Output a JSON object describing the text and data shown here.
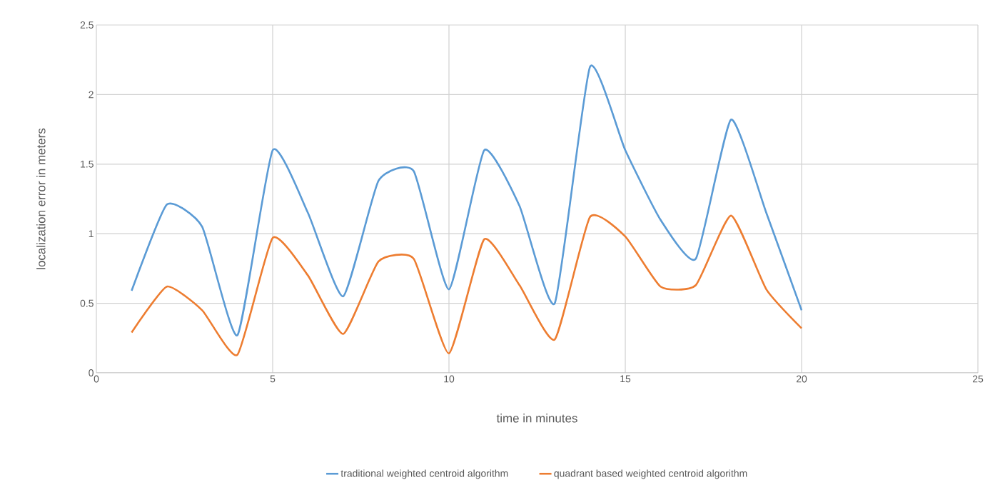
{
  "chart_data": {
    "type": "line",
    "xlabel": "time in minutes",
    "ylabel": "localization error in meters",
    "x": [
      1,
      2,
      3,
      4,
      5,
      6,
      7,
      8,
      9,
      10,
      11,
      12,
      13,
      14,
      15,
      16,
      17,
      18,
      19,
      20
    ],
    "series": [
      {
        "name": "traditional weighted centroid algorithm",
        "color": "#5b9bd5",
        "values": [
          0.59,
          1.21,
          1.05,
          0.27,
          1.6,
          1.15,
          0.55,
          1.38,
          1.45,
          0.6,
          1.6,
          1.2,
          0.5,
          2.2,
          1.6,
          1.1,
          0.82,
          1.82,
          1.15,
          0.45
        ]
      },
      {
        "name": "quadrant based weighted centroid algorithm",
        "color": "#ed7d31",
        "values": [
          0.29,
          0.62,
          0.45,
          0.13,
          0.97,
          0.7,
          0.28,
          0.8,
          0.82,
          0.14,
          0.96,
          0.63,
          0.24,
          1.12,
          0.98,
          0.62,
          0.63,
          1.13,
          0.6,
          0.32
        ]
      }
    ],
    "xlim": [
      0,
      25
    ],
    "xticks": [
      0,
      5,
      10,
      15,
      20,
      25
    ],
    "ylim": [
      0,
      2.5
    ],
    "yticks": [
      0,
      0.5,
      1,
      1.5,
      2,
      2.5
    ],
    "grid": true,
    "legend": "bottom",
    "marker": "none",
    "line_style": "solid"
  }
}
